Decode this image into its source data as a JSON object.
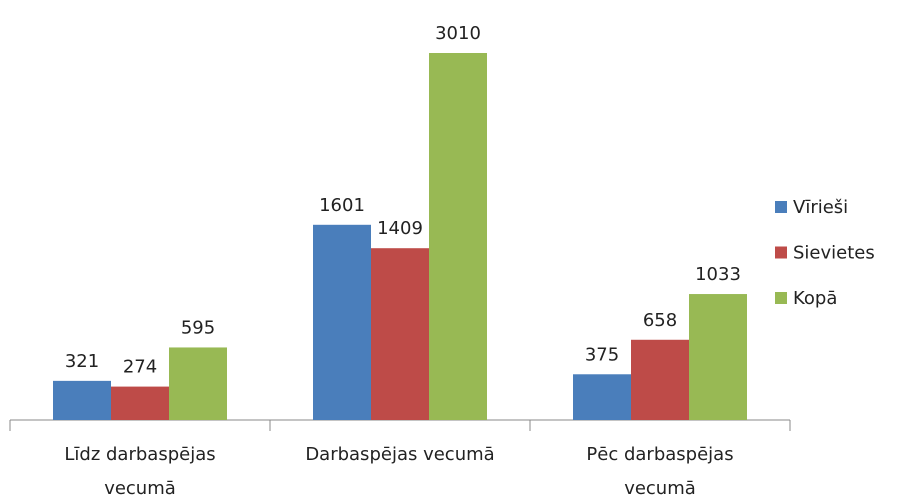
{
  "chart_data": {
    "type": "bar",
    "categories": [
      "Līdz darbaspējas vecumā",
      "Darbaspējas vecumā",
      "Pēc darbaspējas vecumā"
    ],
    "series": [
      {
        "name": "Vīrieši",
        "color": "#4a7ebb",
        "values": [
          321,
          1601,
          375
        ]
      },
      {
        "name": "Sievietes",
        "color": "#be4b48",
        "values": [
          274,
          1409,
          658
        ]
      },
      {
        "name": "Kopā",
        "color": "#98b954",
        "values": [
          595,
          3010,
          1033
        ]
      }
    ],
    "legend": "right"
  }
}
